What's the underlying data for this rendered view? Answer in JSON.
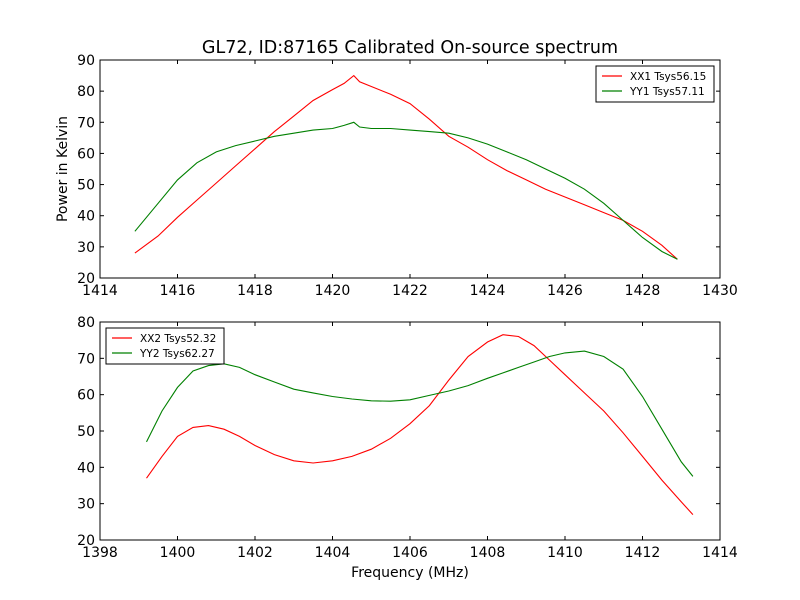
{
  "figure": {
    "title": "GL72, ID:87165 Calibrated On-source spectrum",
    "ylabel": "Power in Kelvin",
    "xlabel": "Frequency (MHz)"
  },
  "chart_data": [
    {
      "type": "line",
      "title": "GL72, ID:87165 Calibrated On-source spectrum",
      "xlabel": "",
      "ylabel": "Power in Kelvin",
      "xlim": [
        1414,
        1430
      ],
      "ylim": [
        20,
        90
      ],
      "xticks": [
        1414,
        1416,
        1418,
        1420,
        1422,
        1424,
        1426,
        1428,
        1430
      ],
      "yticks": [
        20,
        30,
        40,
        50,
        60,
        70,
        80,
        90
      ],
      "grid": false,
      "legend_position": "top-right",
      "series": [
        {
          "name": "XX1 Tsys56.15",
          "color": "#ff0000",
          "x": [
            1414.9,
            1415.5,
            1416.0,
            1416.5,
            1417.0,
            1417.5,
            1418.0,
            1418.5,
            1419.0,
            1419.5,
            1420.0,
            1420.3,
            1420.55,
            1420.7,
            1421.0,
            1421.5,
            1422.0,
            1422.5,
            1423.0,
            1423.5,
            1424.0,
            1424.5,
            1425.0,
            1425.5,
            1426.0,
            1426.5,
            1427.0,
            1427.5,
            1428.0,
            1428.5,
            1428.9
          ],
          "y": [
            28.0,
            33.5,
            39.5,
            45.0,
            50.5,
            56.0,
            61.5,
            67.0,
            72.0,
            77.0,
            80.5,
            82.5,
            85.0,
            83.0,
            81.5,
            79.0,
            76.0,
            71.0,
            65.5,
            62.0,
            58.0,
            54.5,
            51.5,
            48.5,
            46.0,
            43.5,
            41.0,
            38.5,
            35.0,
            30.5,
            26.0
          ]
        },
        {
          "name": "YY1 Tsys57.11",
          "color": "#008000",
          "x": [
            1414.9,
            1415.5,
            1416.0,
            1416.5,
            1417.0,
            1417.5,
            1418.0,
            1418.5,
            1419.0,
            1419.5,
            1420.0,
            1420.3,
            1420.55,
            1420.7,
            1421.0,
            1421.5,
            1422.0,
            1422.5,
            1423.0,
            1423.5,
            1424.0,
            1424.5,
            1425.0,
            1425.5,
            1426.0,
            1426.5,
            1427.0,
            1427.5,
            1428.0,
            1428.5,
            1428.9
          ],
          "y": [
            35.0,
            44.0,
            51.5,
            57.0,
            60.5,
            62.5,
            64.0,
            65.5,
            66.5,
            67.5,
            68.0,
            69.0,
            70.0,
            68.5,
            68.0,
            68.0,
            67.5,
            67.0,
            66.5,
            65.0,
            63.0,
            60.5,
            58.0,
            55.0,
            52.0,
            48.5,
            44.0,
            38.5,
            33.0,
            28.5,
            26.0
          ]
        }
      ]
    },
    {
      "type": "line",
      "title": "",
      "xlabel": "Frequency (MHz)",
      "ylabel": "",
      "xlim": [
        1398,
        1414
      ],
      "ylim": [
        20,
        80
      ],
      "xticks": [
        1398,
        1400,
        1402,
        1404,
        1406,
        1408,
        1410,
        1412,
        1414
      ],
      "yticks": [
        20,
        30,
        40,
        50,
        60,
        70,
        80
      ],
      "grid": false,
      "legend_position": "top-left",
      "series": [
        {
          "name": "XX2 Tsys52.32",
          "color": "#ff0000",
          "x": [
            1399.2,
            1399.6,
            1400.0,
            1400.4,
            1400.8,
            1401.2,
            1401.6,
            1402.0,
            1402.5,
            1403.0,
            1403.5,
            1404.0,
            1404.5,
            1405.0,
            1405.5,
            1406.0,
            1406.5,
            1407.0,
            1407.5,
            1408.0,
            1408.4,
            1408.8,
            1409.2,
            1409.6,
            1410.0,
            1410.5,
            1411.0,
            1411.5,
            1412.0,
            1412.5,
            1413.0,
            1413.3
          ],
          "y": [
            37.0,
            43.0,
            48.5,
            51.0,
            51.5,
            50.5,
            48.5,
            46.0,
            43.5,
            41.8,
            41.2,
            41.8,
            43.0,
            45.0,
            48.0,
            52.0,
            57.0,
            64.0,
            70.5,
            74.5,
            76.5,
            76.0,
            73.5,
            69.5,
            65.5,
            60.5,
            55.5,
            49.5,
            43.0,
            36.5,
            30.5,
            27.0
          ]
        },
        {
          "name": "YY2 Tsys62.27",
          "color": "#008000",
          "x": [
            1399.2,
            1399.6,
            1400.0,
            1400.4,
            1400.8,
            1401.2,
            1401.6,
            1402.0,
            1402.5,
            1403.0,
            1403.5,
            1404.0,
            1404.5,
            1405.0,
            1405.5,
            1406.0,
            1406.5,
            1407.0,
            1407.5,
            1408.0,
            1408.4,
            1408.8,
            1409.2,
            1409.6,
            1410.0,
            1410.5,
            1411.0,
            1411.5,
            1412.0,
            1412.5,
            1413.0,
            1413.3
          ],
          "y": [
            47.0,
            55.5,
            62.0,
            66.5,
            68.0,
            68.5,
            67.5,
            65.5,
            63.5,
            61.5,
            60.5,
            59.5,
            58.8,
            58.3,
            58.2,
            58.6,
            59.8,
            61.0,
            62.5,
            64.5,
            66.0,
            67.5,
            69.0,
            70.5,
            71.5,
            72.0,
            70.5,
            67.0,
            59.5,
            50.5,
            41.5,
            37.5
          ]
        }
      ]
    }
  ]
}
